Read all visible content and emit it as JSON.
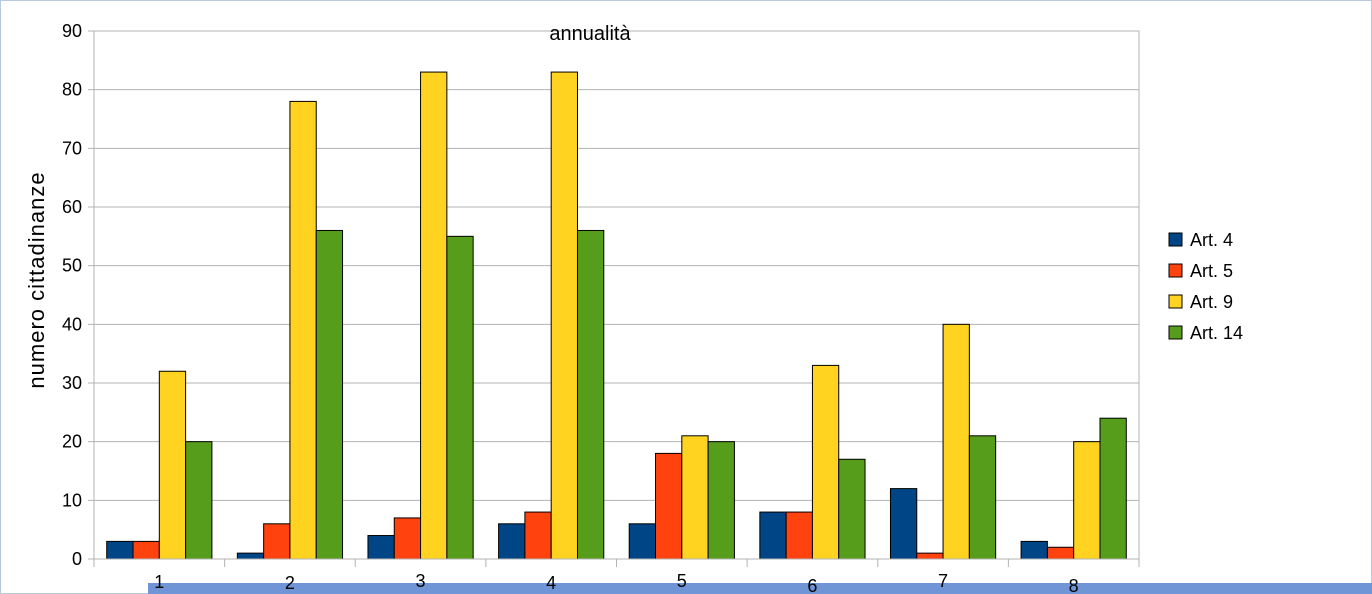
{
  "chart_data": {
    "type": "bar",
    "title": "annualità",
    "xlabel": "",
    "ylabel": "numero cittadinanze",
    "categories": [
      "1",
      "2",
      "3",
      "4",
      "5",
      "6",
      "7",
      "8"
    ],
    "ylim": [
      0,
      90
    ],
    "yticks": [
      0,
      10,
      20,
      30,
      40,
      50,
      60,
      70,
      80,
      90
    ],
    "grid": true,
    "legend_position": "right",
    "series": [
      {
        "name": "Art. 4",
        "color": "#004586",
        "values": [
          3,
          1,
          4,
          6,
          6,
          8,
          12,
          3
        ]
      },
      {
        "name": "Art. 5",
        "color": "#ff420e",
        "values": [
          3,
          6,
          7,
          8,
          18,
          8,
          1,
          2
        ]
      },
      {
        "name": "Art. 9",
        "color": "#ffd320",
        "values": [
          32,
          78,
          83,
          83,
          21,
          33,
          40,
          20
        ]
      },
      {
        "name": "Art. 14",
        "color": "#579d1c",
        "values": [
          20,
          56,
          55,
          56,
          20,
          17,
          21,
          24
        ]
      }
    ]
  }
}
